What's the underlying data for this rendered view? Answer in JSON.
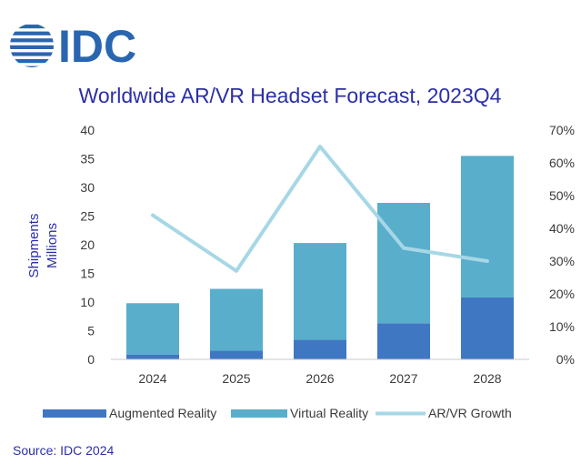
{
  "logo": {
    "text": "IDC"
  },
  "chart_data": {
    "type": "bar",
    "stacked": true,
    "title": "Worldwide AR/VR Headset Forecast, 2023Q4",
    "categories": [
      "2024",
      "2025",
      "2026",
      "2027",
      "2028"
    ],
    "series": [
      {
        "name": "Augmented Reality",
        "type": "bar",
        "axis": "left",
        "color": "#3f77c3",
        "values": [
          0.8,
          1.5,
          3.4,
          6.3,
          10.8
        ]
      },
      {
        "name": "Virtual Reality",
        "type": "bar",
        "axis": "left",
        "color": "#58aecb",
        "values": [
          9.0,
          10.8,
          16.9,
          21.0,
          24.7
        ]
      },
      {
        "name": "AR/VR Growth",
        "type": "line",
        "axis": "right",
        "color": "#a6d7e6",
        "values": [
          44,
          27,
          65,
          34,
          30
        ]
      }
    ],
    "ylabel": [
      "Shipments",
      "Millions"
    ],
    "ylim": [
      0,
      40
    ],
    "yticks": [
      "0",
      "5",
      "10",
      "15",
      "20",
      "25",
      "30",
      "35",
      "40"
    ],
    "y2lim": [
      0,
      70
    ],
    "y2ticks": [
      "0%",
      "10%",
      "20%",
      "30%",
      "40%",
      "50%",
      "60%",
      "70%"
    ],
    "grid": false,
    "legend_position": "bottom",
    "source": "Source: IDC 2024"
  }
}
